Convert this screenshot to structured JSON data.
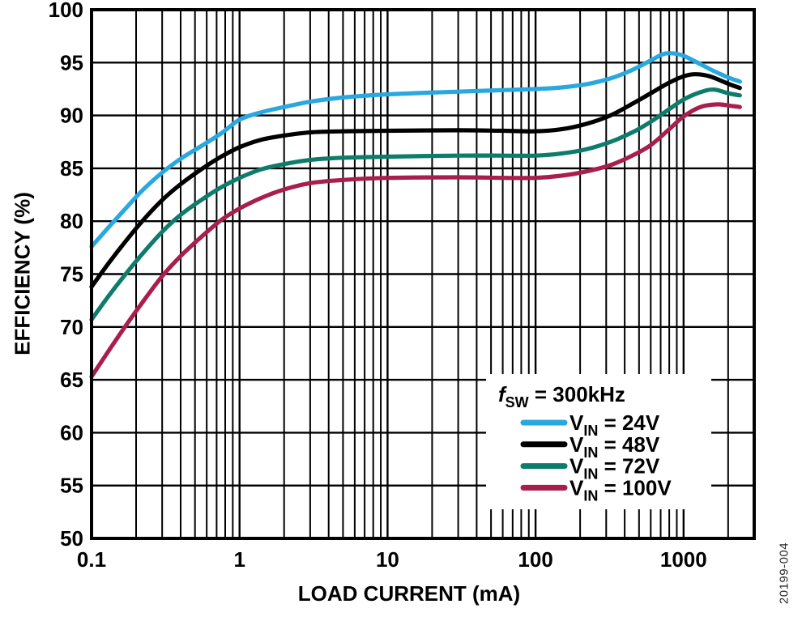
{
  "figure_code": "20199-004",
  "chart_data": {
    "type": "line",
    "title": "",
    "xlabel": "LOAD CURRENT (mA)",
    "ylabel": "EFFICIENCY (%)",
    "x_scale": "log",
    "xlim": [
      0.1,
      3000
    ],
    "ylim": [
      50,
      100
    ],
    "grid": {
      "horizontal": "major-every-5",
      "vertical": "log-decades-with-minors",
      "color": "#000000"
    },
    "y_ticks": [
      100,
      95,
      90,
      85,
      80,
      75,
      70,
      65,
      60,
      55,
      50
    ],
    "x_major_ticks": [
      0.1,
      1,
      10,
      100,
      1000
    ],
    "x_tick_labels": [
      "0.1",
      "1",
      "10",
      "100",
      "1000"
    ],
    "legend": {
      "position": "bottom-right",
      "header": {
        "symbol": "f",
        "symbol_sub": "SW",
        "text": " = 300kHz"
      }
    },
    "series": [
      {
        "id": "vin-100v",
        "label_pre": "V",
        "label_sub": "IN",
        "label_text": " = 100V",
        "color": "#A81E4D",
        "points": [
          [
            0.1,
            65.3
          ],
          [
            0.13,
            67.7
          ],
          [
            0.17,
            70.1
          ],
          [
            0.22,
            72.3
          ],
          [
            0.3,
            74.8
          ],
          [
            0.4,
            76.7
          ],
          [
            0.55,
            78.5
          ],
          [
            0.75,
            80.1
          ],
          [
            1,
            81.2
          ],
          [
            1.4,
            82.2
          ],
          [
            2,
            83.0
          ],
          [
            3,
            83.6
          ],
          [
            5,
            83.9
          ],
          [
            10,
            84.1
          ],
          [
            30,
            84.15
          ],
          [
            60,
            84.1
          ],
          [
            100,
            84.1
          ],
          [
            150,
            84.3
          ],
          [
            220,
            84.7
          ],
          [
            320,
            85.3
          ],
          [
            450,
            86.2
          ],
          [
            600,
            87.2
          ],
          [
            800,
            88.7
          ],
          [
            1000,
            89.9
          ],
          [
            1300,
            90.8
          ],
          [
            1700,
            91.05
          ],
          [
            2100,
            90.9
          ],
          [
            2400,
            90.8
          ]
        ]
      },
      {
        "id": "vin-72v",
        "label_pre": "V",
        "label_sub": "IN",
        "label_text": " = 72V",
        "color": "#0E7C6B",
        "points": [
          [
            0.1,
            70.7
          ],
          [
            0.13,
            72.9
          ],
          [
            0.17,
            75.0
          ],
          [
            0.22,
            76.9
          ],
          [
            0.3,
            79.0
          ],
          [
            0.4,
            80.6
          ],
          [
            0.55,
            82.0
          ],
          [
            0.75,
            83.2
          ],
          [
            1,
            84.1
          ],
          [
            1.4,
            84.9
          ],
          [
            2,
            85.4
          ],
          [
            3,
            85.8
          ],
          [
            5,
            86.0
          ],
          [
            10,
            86.1
          ],
          [
            30,
            86.2
          ],
          [
            60,
            86.2
          ],
          [
            100,
            86.2
          ],
          [
            150,
            86.4
          ],
          [
            220,
            86.8
          ],
          [
            320,
            87.5
          ],
          [
            450,
            88.4
          ],
          [
            600,
            89.4
          ],
          [
            800,
            90.6
          ],
          [
            1000,
            91.5
          ],
          [
            1300,
            92.2
          ],
          [
            1600,
            92.45
          ],
          [
            2000,
            92.1
          ],
          [
            2400,
            91.9
          ]
        ]
      },
      {
        "id": "vin-48v",
        "label_pre": "V",
        "label_sub": "IN",
        "label_text": " = 48V",
        "color": "#000000",
        "points": [
          [
            0.1,
            73.8
          ],
          [
            0.13,
            76.0
          ],
          [
            0.17,
            78.1
          ],
          [
            0.22,
            80.0
          ],
          [
            0.3,
            82.0
          ],
          [
            0.4,
            83.5
          ],
          [
            0.55,
            84.9
          ],
          [
            0.75,
            86.1
          ],
          [
            1,
            87.0
          ],
          [
            1.4,
            87.7
          ],
          [
            2,
            88.1
          ],
          [
            3,
            88.4
          ],
          [
            5,
            88.5
          ],
          [
            10,
            88.55
          ],
          [
            30,
            88.6
          ],
          [
            60,
            88.55
          ],
          [
            100,
            88.5
          ],
          [
            150,
            88.7
          ],
          [
            220,
            89.2
          ],
          [
            320,
            90.0
          ],
          [
            450,
            91.1
          ],
          [
            600,
            92.1
          ],
          [
            800,
            93.1
          ],
          [
            1000,
            93.7
          ],
          [
            1200,
            93.9
          ],
          [
            1500,
            93.7
          ],
          [
            2000,
            93.0
          ],
          [
            2400,
            92.6
          ]
        ]
      },
      {
        "id": "vin-24v",
        "label_pre": "V",
        "label_sub": "IN",
        "label_text": " = 24V",
        "color": "#29A8DF",
        "points": [
          [
            0.1,
            77.6
          ],
          [
            0.13,
            79.4
          ],
          [
            0.17,
            81.2
          ],
          [
            0.22,
            82.9
          ],
          [
            0.3,
            84.6
          ],
          [
            0.4,
            85.9
          ],
          [
            0.55,
            87.1
          ],
          [
            0.75,
            88.3
          ],
          [
            1,
            89.6
          ],
          [
            1.4,
            90.3
          ],
          [
            2,
            90.8
          ],
          [
            3,
            91.3
          ],
          [
            5,
            91.7
          ],
          [
            10,
            92.0
          ],
          [
            30,
            92.25
          ],
          [
            60,
            92.4
          ],
          [
            100,
            92.5
          ],
          [
            150,
            92.65
          ],
          [
            220,
            92.95
          ],
          [
            320,
            93.5
          ],
          [
            450,
            94.3
          ],
          [
            600,
            95.2
          ],
          [
            750,
            95.85
          ],
          [
            950,
            95.75
          ],
          [
            1200,
            95.1
          ],
          [
            1600,
            94.2
          ],
          [
            2000,
            93.6
          ],
          [
            2400,
            93.2
          ]
        ]
      }
    ]
  }
}
